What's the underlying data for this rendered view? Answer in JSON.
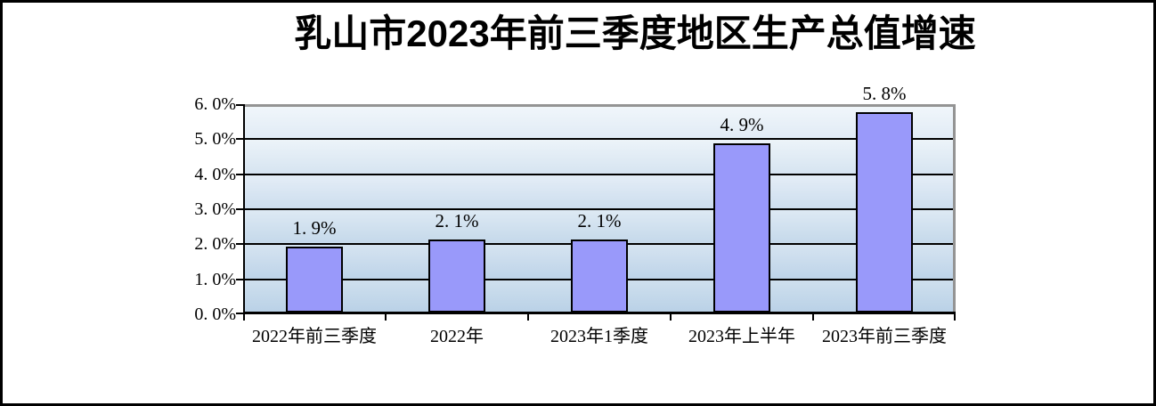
{
  "title": "乳山市2023年前三季度地区生产总值增速",
  "y_axis": {
    "labels": [
      "6. 0%",
      "5. 0%",
      "4. 0%",
      "3. 0%",
      "2. 0%",
      "1. 0%",
      "0. 0%"
    ]
  },
  "x_axis": {
    "labels": [
      "2022年前三季度",
      "2022年",
      "2023年1季度",
      "2023年上半年",
      "2023年前三季度"
    ]
  },
  "bars": {
    "labels": [
      "1. 9%",
      "2. 1%",
      "2. 1%",
      "4. 9%",
      "5. 8%"
    ]
  },
  "colors": {
    "bar_fill": "#9999FA",
    "bar_border": "#000000",
    "gridline": "#000000",
    "plot_border_gray": "#949494",
    "outer_border": "#000000",
    "plot_bg_top": "#F2F7FB",
    "plot_bg_bottom": "#B8D0E6",
    "background": "#FFFFFF"
  },
  "chart_data": {
    "type": "bar",
    "title": "乳山市2023年前三季度地区生产总值增速",
    "categories": [
      "2022年前三季度",
      "2022年",
      "2023年1季度",
      "2023年上半年",
      "2023年前三季度"
    ],
    "values": [
      1.9,
      2.1,
      2.1,
      4.9,
      5.8
    ],
    "data_labels": [
      "1.9%",
      "2.1%",
      "2.1%",
      "4.9%",
      "5.8%"
    ],
    "xlabel": "",
    "ylabel": "",
    "ylim": [
      0,
      6
    ],
    "y_tick_step": 1.0,
    "y_tick_labels": [
      "0.0%",
      "1.0%",
      "2.0%",
      "3.0%",
      "4.0%",
      "5.0%",
      "6.0%"
    ],
    "grid": true,
    "legend": false
  }
}
